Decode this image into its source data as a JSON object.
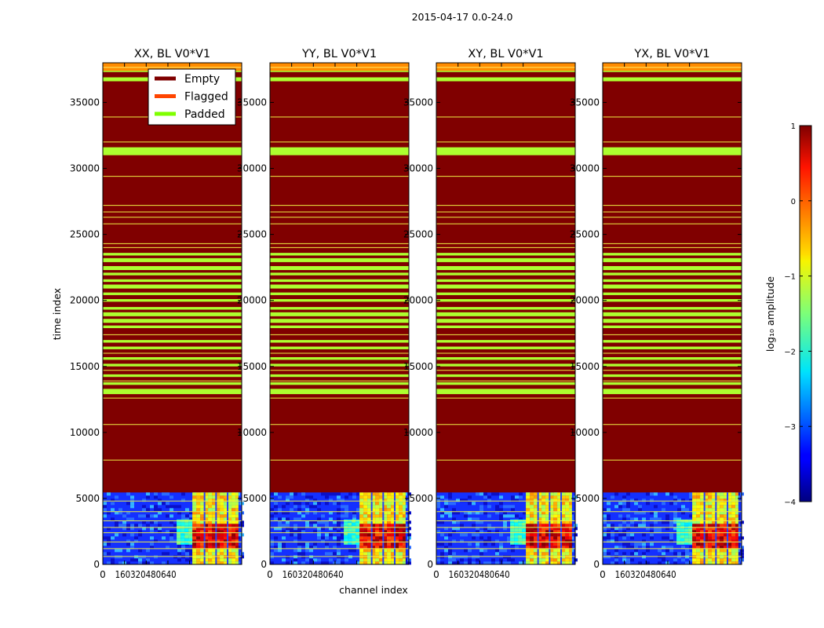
{
  "chart_data": {
    "type": "heatmap",
    "suptitle": "2015-04-17 0.0-24.0",
    "xlabel": "channel index",
    "ylabel": "time index",
    "xlim": [
      0,
      1024
    ],
    "ylim": [
      0,
      38000
    ],
    "x_ticks": [
      0,
      160,
      320,
      480,
      640
    ],
    "x_tick_labels": [
      "0",
      "160",
      "320",
      "480",
      "640"
    ],
    "y_ticks": [
      0,
      5000,
      10000,
      15000,
      20000,
      25000,
      30000,
      35000
    ],
    "y_tick_labels": [
      "0",
      "5000",
      "10000",
      "15000",
      "20000",
      "25000",
      "30000",
      "35000"
    ],
    "panels": [
      {
        "title": "XX, BL V0*V1"
      },
      {
        "title": "YY, BL V0*V1"
      },
      {
        "title": "XY, BL V0*V1"
      },
      {
        "title": "YX, BL V0*V1"
      }
    ],
    "legend": {
      "placement": "top-right of first panel",
      "entries": [
        {
          "label": "Empty",
          "color": "#7f0000"
        },
        {
          "label": "Flagged",
          "color": "#ff4500"
        },
        {
          "label": "Padded",
          "color": "#7fff00"
        }
      ]
    },
    "data_end_time_index": 5450,
    "empty_color": "#800000",
    "padded_color": "#adff2f",
    "flagged_color": "#ff8c00",
    "flagged_top_range": [
      37400,
      38000
    ],
    "padded_bands": [
      [
        37300,
        37400
      ],
      [
        36600,
        36900
      ],
      [
        31000,
        31600
      ],
      [
        23400,
        23600
      ],
      [
        22900,
        23200
      ],
      [
        22300,
        22600
      ],
      [
        21900,
        22100
      ],
      [
        21400,
        21600
      ],
      [
        20900,
        21200
      ],
      [
        20400,
        20600
      ],
      [
        19900,
        20100
      ],
      [
        19300,
        19500
      ],
      [
        18800,
        19100
      ],
      [
        18300,
        18600
      ],
      [
        17900,
        18100
      ],
      [
        16800,
        17000
      ],
      [
        16300,
        16500
      ],
      [
        15500,
        15700
      ],
      [
        15000,
        15200
      ],
      [
        14200,
        14400
      ],
      [
        13600,
        13800
      ],
      [
        12900,
        13300
      ]
    ],
    "yellow_lines": [
      33900,
      32000,
      29400,
      27200,
      26700,
      26300,
      25800,
      24000,
      24300,
      17400,
      16000,
      14700,
      13900,
      12600,
      10600,
      7900,
      4800,
      4000,
      3300,
      2800,
      2400,
      1700,
      1200,
      600
    ],
    "active_channel_range": [
      660,
      1000
    ],
    "subband_dividers": [
      750,
      835,
      920
    ],
    "colorbar": {
      "label": "log₁₀ amplitude",
      "range": [
        -4,
        1
      ],
      "ticks": [
        1,
        0,
        -1,
        -2,
        -3,
        -4
      ],
      "tick_labels": [
        "1",
        "0",
        "−1",
        "−2",
        "−3",
        "−4"
      ],
      "colormap": "jet"
    }
  }
}
